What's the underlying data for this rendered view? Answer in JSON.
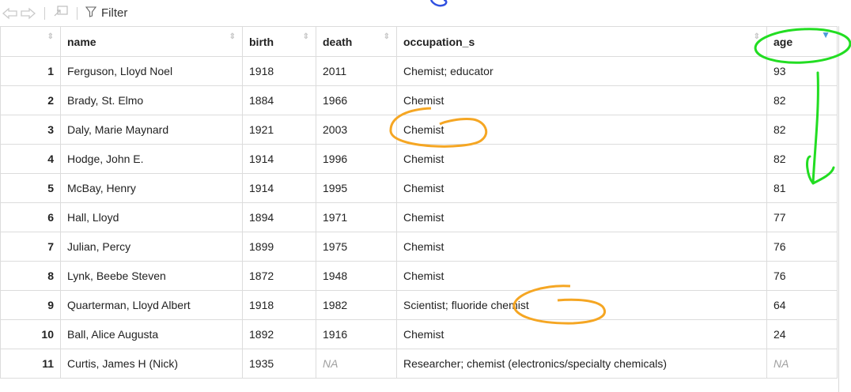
{
  "toolbar": {
    "filter_label": "Filter"
  },
  "table": {
    "columns": [
      "name",
      "birth",
      "death",
      "occupation_s",
      "age"
    ],
    "rows": [
      {
        "num": "1",
        "name": "Ferguson, Lloyd Noel",
        "birth": "1918",
        "death": "2011",
        "occupation": "Chemist; educator",
        "age": "93"
      },
      {
        "num": "2",
        "name": "Brady, St. Elmo",
        "birth": "1884",
        "death": "1966",
        "occupation": "Chemist",
        "age": "82"
      },
      {
        "num": "3",
        "name": "Daly, Marie Maynard",
        "birth": "1921",
        "death": "2003",
        "occupation": "Chemist",
        "age": "82"
      },
      {
        "num": "4",
        "name": "Hodge, John E.",
        "birth": "1914",
        "death": "1996",
        "occupation": "Chemist",
        "age": "82"
      },
      {
        "num": "5",
        "name": "McBay, Henry",
        "birth": "1914",
        "death": "1995",
        "occupation": "Chemist",
        "age": "81"
      },
      {
        "num": "6",
        "name": "Hall, Lloyd",
        "birth": "1894",
        "death": "1971",
        "occupation": "Chemist",
        "age": "77"
      },
      {
        "num": "7",
        "name": "Julian, Percy",
        "birth": "1899",
        "death": "1975",
        "occupation": "Chemist",
        "age": "76"
      },
      {
        "num": "8",
        "name": "Lynk, Beebe Steven",
        "birth": "1872",
        "death": "1948",
        "occupation": "Chemist",
        "age": "76"
      },
      {
        "num": "9",
        "name": "Quarterman, Lloyd Albert",
        "birth": "1918",
        "death": "1982",
        "occupation": "Scientist; fluoride chemist",
        "age": "64"
      },
      {
        "num": "10",
        "name": "Ball, Alice Augusta",
        "birth": "1892",
        "death": "1916",
        "occupation": "Chemist",
        "age": "24"
      },
      {
        "num": "11",
        "name": "Curtis, James H (Nick)",
        "birth": "1935",
        "death": "NA",
        "occupation": "Researcher; chemist (electronics/specialty chemicals)",
        "age": "NA"
      }
    ]
  },
  "colors": {
    "sort_active": "#4a9bd8",
    "annotation_green": "#22dd22",
    "annotation_orange": "#f5a623",
    "annotation_blue": "#3050e0"
  }
}
